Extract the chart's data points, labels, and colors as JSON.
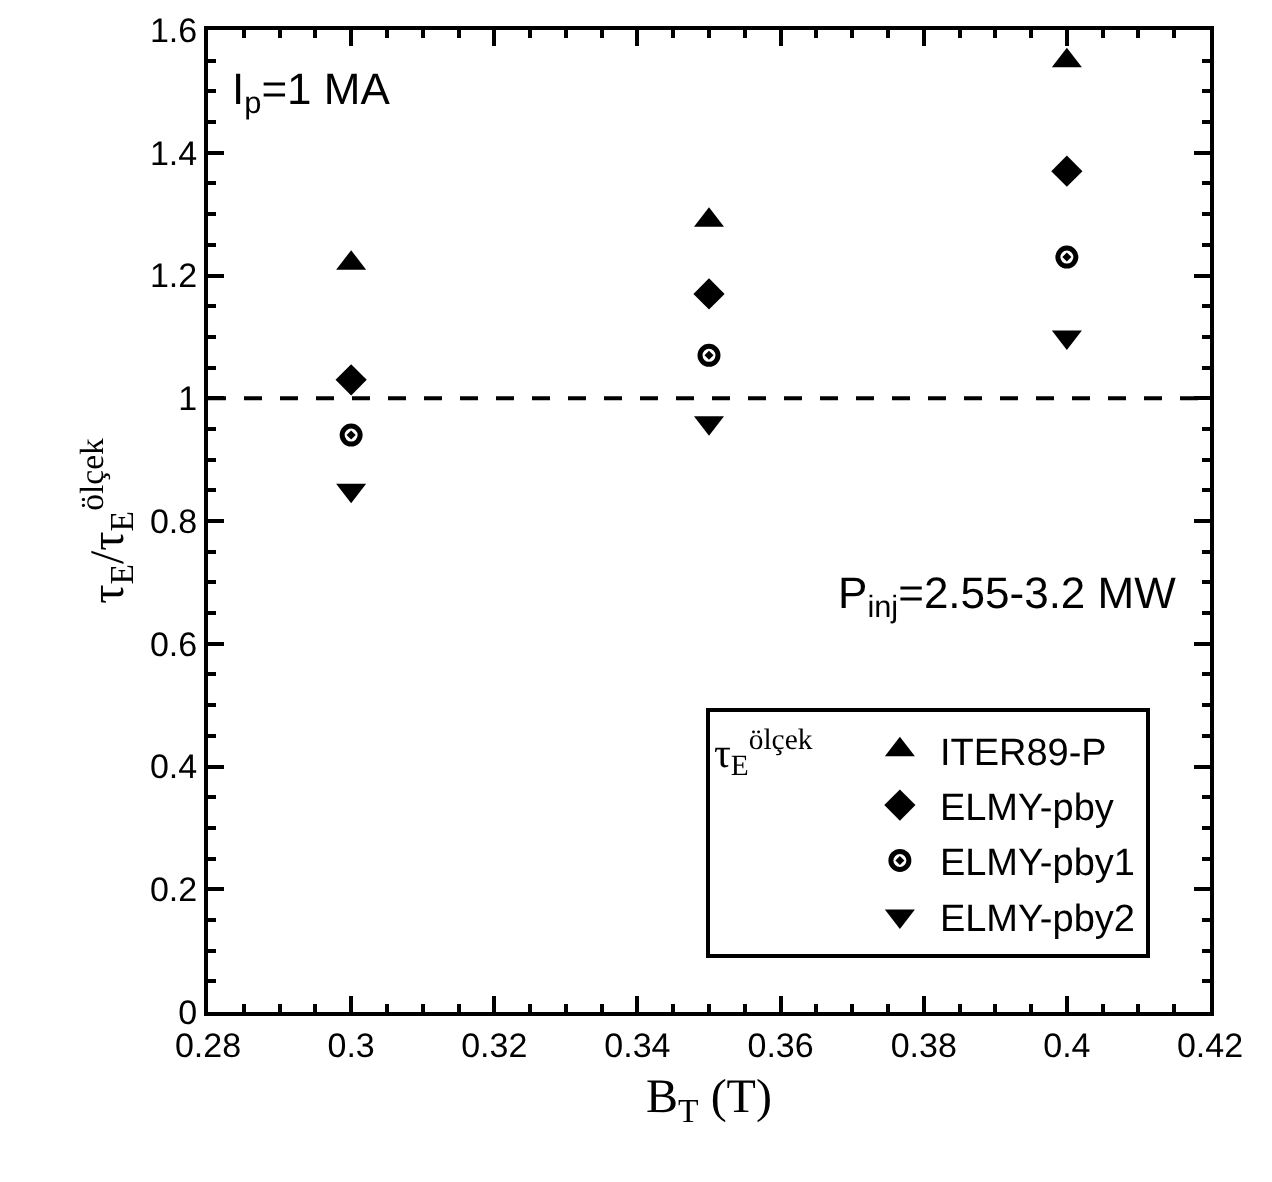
{
  "chart_data": {
    "type": "scatter",
    "xlabel": "B$_{T}$ (T)",
    "ylabel": "τ$_{E}$/τ$_{E}$$^{ölçek}$",
    "legend_title": "τ$_{E}$$^{ölçek}$",
    "annotations": [
      "I$_{p}$=1 MA",
      "P$_{inj}$=2.55-3.2 MW"
    ],
    "x": [
      0.3,
      0.35,
      0.4
    ],
    "series": [
      {
        "name": "ITER89-P",
        "color": "#000000",
        "marker": "triangle",
        "values": [
          1.22,
          1.29,
          1.55
        ]
      },
      {
        "name": "ELMY-pby",
        "color": "#000000",
        "marker": "diamond",
        "values": [
          1.03,
          1.17,
          1.37
        ]
      },
      {
        "name": "ELMY-pby1",
        "color": "#000000",
        "marker": "circle",
        "values": [
          0.94,
          1.07,
          1.23
        ]
      },
      {
        "name": "ELMY-pby2",
        "color": "#000000",
        "marker": "triangle-down",
        "values": [
          0.85,
          0.96,
          1.1
        ]
      }
    ],
    "xlim": [
      0.28,
      0.42
    ],
    "xticks": [
      0.28,
      0.3,
      0.32,
      0.34,
      0.36,
      0.38,
      0.4,
      0.42
    ],
    "ylim": [
      0,
      1.6
    ],
    "yticks": [
      0,
      0.2,
      0.4,
      0.6,
      0.8,
      1,
      1.2,
      1.4,
      1.6
    ],
    "ref_lines": [
      {
        "axis": "y",
        "value": 1,
        "line_style": "dashed",
        "color": "#000000"
      }
    ],
    "grid": false,
    "legend": "bottom right"
  }
}
